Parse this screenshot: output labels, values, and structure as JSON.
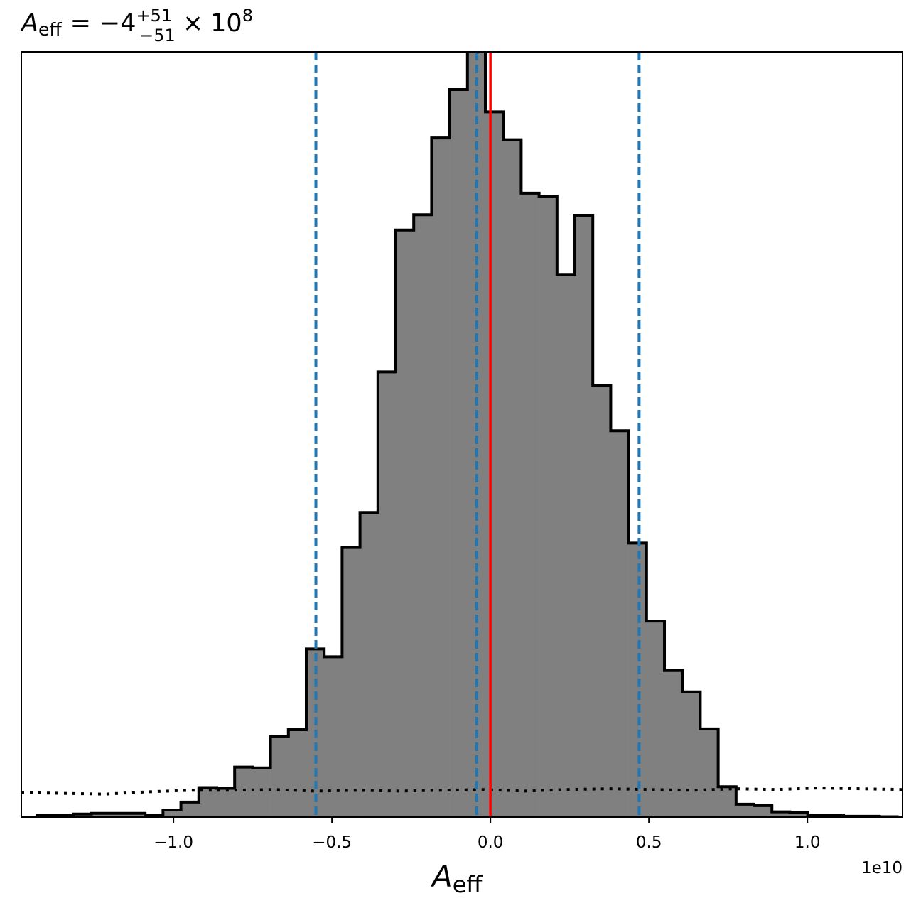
{
  "chart_data": {
    "type": "histogram",
    "title": {
      "symbol": "A",
      "subscript": "eff",
      "equals": "=",
      "value": "−4",
      "upper": "+51",
      "lower": "−51",
      "times": "×",
      "base": "10",
      "exponent": "8"
    },
    "xlabel": {
      "symbol": "A",
      "subscript": "eff"
    },
    "x_offset_label": "1e10",
    "xlim": [
      -1.48,
      1.3
    ],
    "ylim": [
      0,
      1
    ],
    "grid": false,
    "xticks": [
      {
        "value": -1.0,
        "label": "−1.0"
      },
      {
        "value": -0.5,
        "label": "−0.5"
      },
      {
        "value": 0.0,
        "label": "0.0"
      },
      {
        "value": 0.5,
        "label": "0.5"
      },
      {
        "value": 1.0,
        "label": "1.0"
      }
    ],
    "bin_start": -1.4285,
    "bin_width": 0.0565,
    "values": [
      0.0021,
      0.0021,
      0.0039,
      0.0049,
      0.0049,
      0.0049,
      0.0021,
      0.0093,
      0.0196,
      0.0385,
      0.0376,
      0.0653,
      0.0643,
      0.1049,
      0.1142,
      0.2197,
      0.2095,
      0.3523,
      0.3981,
      0.5818,
      0.7672,
      0.7871,
      0.8875,
      0.9508,
      1.0,
      0.9216,
      0.8852,
      0.8153,
      0.8113,
      0.7091,
      0.7864,
      0.5636,
      0.5049,
      0.3581,
      0.2561,
      0.1915,
      0.1636,
      0.1152,
      0.0397,
      0.0168,
      0.015,
      0.0068,
      0.0063,
      0.0019,
      0.0019,
      0.0011,
      0.0011,
      0.0005
    ],
    "uniform_prior_values": [
      0.032,
      0.031,
      0.03,
      0.033,
      0.035,
      0.035,
      0.036,
      0.034,
      0.035,
      0.034,
      0.035,
      0.036,
      0.034,
      0.036,
      0.037,
      0.036,
      0.035,
      0.037,
      0.036,
      0.038,
      0.037,
      0.036
    ],
    "fill_color": "#808080",
    "edge_color": "#000000",
    "quantile_lines": [
      -0.5507,
      -0.0432,
      0.4691
    ],
    "quantile_color": "#1f77b4",
    "truth_line": 0.0,
    "truth_color": "#ff0000"
  }
}
